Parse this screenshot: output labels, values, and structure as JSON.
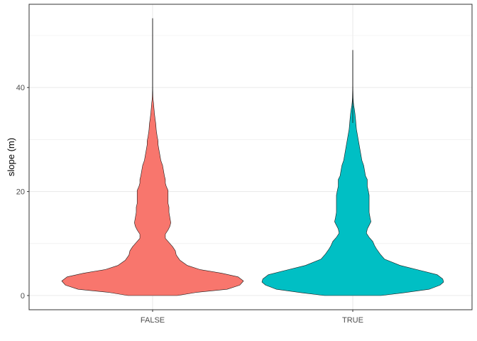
{
  "chart_data": {
    "type": "violin",
    "title": "",
    "xlabel": "",
    "ylabel": "slope (m)",
    "ylim": [
      -2.5,
      55.5
    ],
    "y_ticks": [
      0,
      20,
      40
    ],
    "y_tick_labels": [
      "0",
      "20",
      "40"
    ],
    "grid": true,
    "legend": "none",
    "categories": [
      "FALSE",
      "TRUE"
    ],
    "series": [
      {
        "category": "FALSE",
        "color": "#F8766D",
        "max": 53.3,
        "profile_y": [
          0,
          0.6,
          1.2,
          2,
          2.8,
          3.6,
          4.3,
          5,
          5.8,
          6.8,
          7.8,
          8.6,
          9.4,
          10.2,
          11,
          11.8,
          12.6,
          13.3,
          14,
          15,
          16,
          17,
          17.7,
          18.4,
          19.4,
          20.2,
          21,
          21.6,
          22.3,
          23,
          24,
          25,
          26,
          27,
          28,
          29,
          29.7,
          30.6,
          31.8,
          33,
          34,
          35,
          36,
          37,
          37.6,
          38.2,
          38.8,
          39.3,
          40,
          42,
          44,
          46,
          48.3,
          50,
          52,
          53.3
        ],
        "profile_halfwidth": [
          0.27,
          0.48,
          0.82,
          0.96,
          1.0,
          0.94,
          0.76,
          0.52,
          0.38,
          0.3,
          0.26,
          0.25,
          0.22,
          0.18,
          0.14,
          0.14,
          0.17,
          0.19,
          0.2,
          0.19,
          0.18,
          0.18,
          0.17,
          0.17,
          0.17,
          0.17,
          0.15,
          0.14,
          0.14,
          0.13,
          0.12,
          0.11,
          0.09,
          0.08,
          0.07,
          0.06,
          0.06,
          0.05,
          0.04,
          0.035,
          0.027,
          0.02,
          0.015,
          0.01,
          0.006,
          0.004,
          0.003,
          0.002,
          0.0015,
          0.0012,
          0.0011,
          0.001,
          0.0009,
          0.0006,
          0.0004,
          0.0
        ]
      },
      {
        "category": "TRUE",
        "color": "#00BFC4",
        "max": 47.2,
        "profile_y": [
          0,
          0.5,
          1.2,
          2,
          2.6,
          3.2,
          4,
          4.8,
          5.8,
          7,
          8,
          9,
          9.6,
          10.4,
          11.2,
          12,
          12.8,
          13.5,
          14.2,
          15,
          16,
          17,
          17.6,
          18.5,
          19.3,
          20.2,
          21,
          21.6,
          22.3,
          23,
          24,
          25,
          26,
          27,
          28,
          29,
          30,
          31,
          32,
          33,
          34,
          35,
          35.8,
          36.6,
          37.3,
          38,
          38.8,
          39.5,
          40.5,
          42,
          44,
          46,
          47.2
        ],
        "profile_halfwidth": [
          0.31,
          0.55,
          0.84,
          0.96,
          1.0,
          0.99,
          0.93,
          0.75,
          0.52,
          0.35,
          0.3,
          0.26,
          0.24,
          0.22,
          0.18,
          0.15,
          0.16,
          0.18,
          0.2,
          0.19,
          0.18,
          0.18,
          0.18,
          0.18,
          0.18,
          0.17,
          0.16,
          0.16,
          0.16,
          0.14,
          0.13,
          0.12,
          0.1,
          0.09,
          0.08,
          0.07,
          0.06,
          0.05,
          0.04,
          0.035,
          0.03,
          0.024,
          0.018,
          0.01,
          0.006,
          0.004,
          0.003,
          0.002,
          0.0015,
          0.0012,
          0.001,
          0.0006,
          0.0
        ]
      }
    ]
  }
}
